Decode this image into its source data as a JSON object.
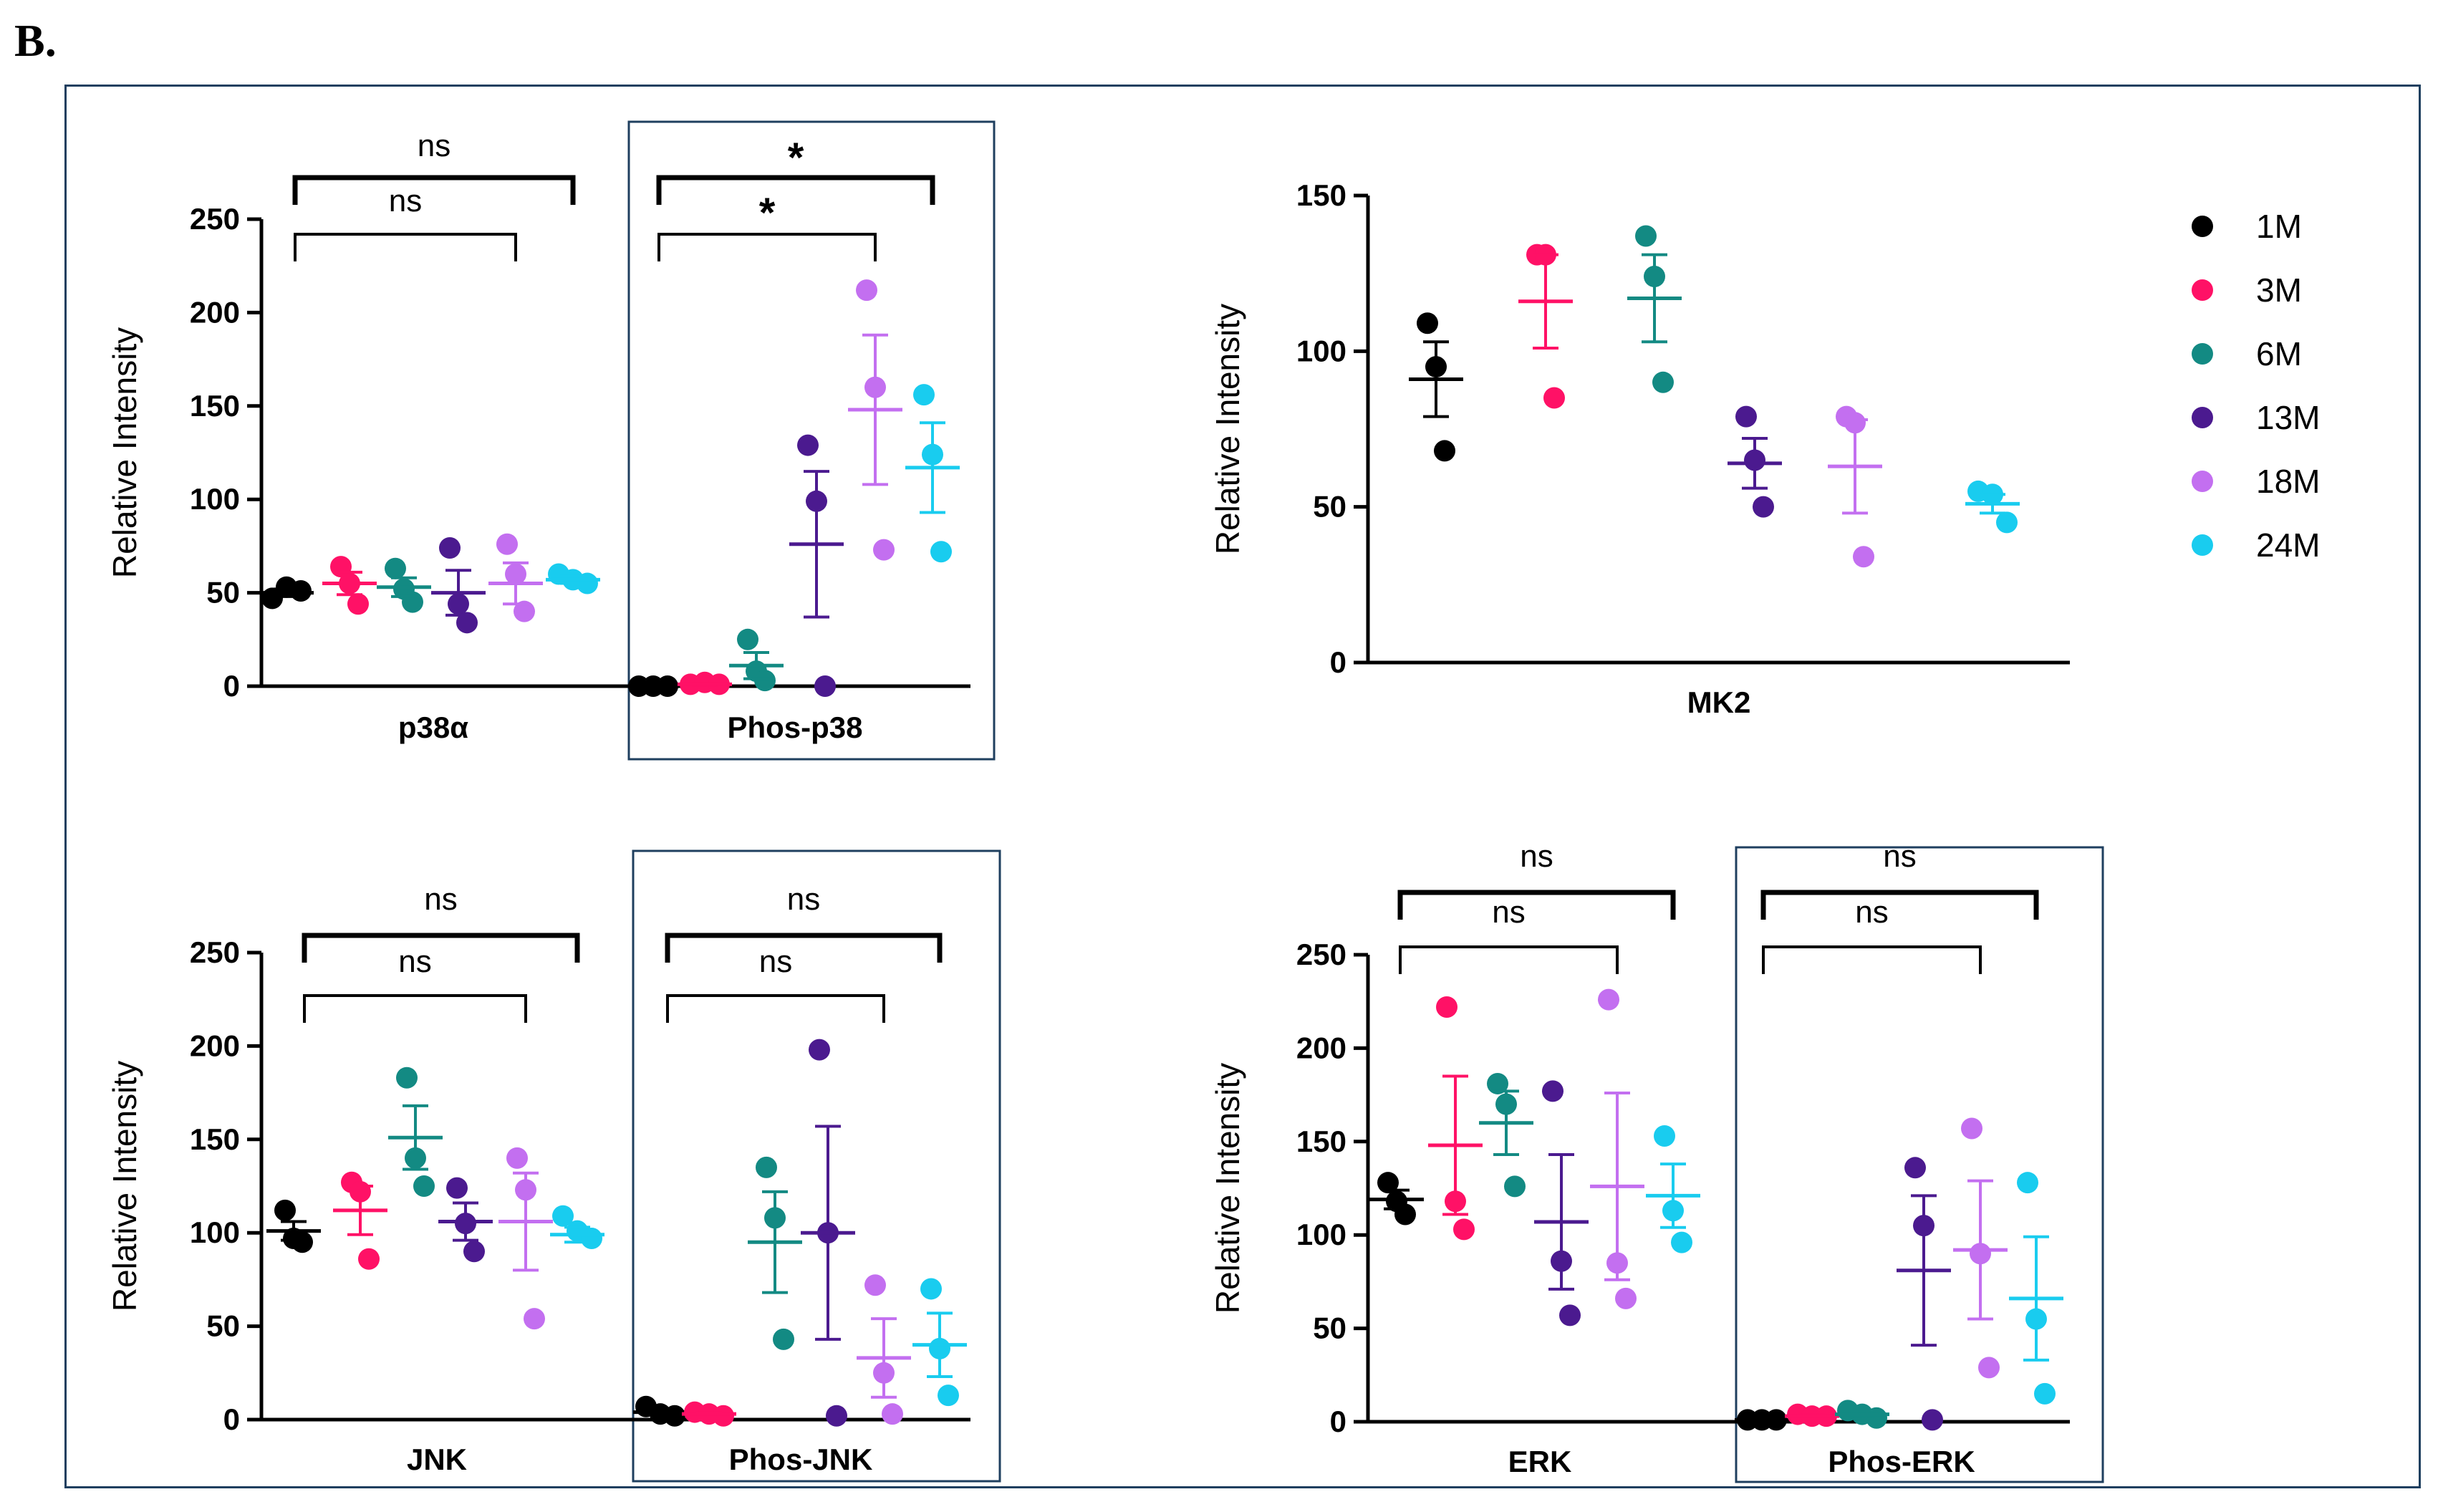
{
  "figure_label": "B.",
  "colors": {
    "1M": "#000000",
    "3M": "#ff1166",
    "6M": "#138a83",
    "13M": "#4b1a8f",
    "18M": "#c36ff0",
    "24M": "#19ccef"
  },
  "legend": [
    "1M",
    "3M",
    "6M",
    "13M",
    "18M",
    "24M"
  ],
  "chart_data": [
    {
      "type": "scatter",
      "title": "p38",
      "ylabel": "Relative Intensity",
      "ylim": [
        0,
        250
      ],
      "yticks": [
        "0",
        "50",
        "100",
        "150",
        "200",
        "250"
      ],
      "categories": [
        "p38α",
        "Phos-p38"
      ],
      "boxed": [
        "Phos-p38"
      ],
      "series": [
        {
          "name": "1M",
          "groups": [
            {
              "points": [
                47,
                53,
                51
              ],
              "mean": 50,
              "sem": 2
            },
            {
              "points": [
                0,
                0,
                0
              ],
              "mean": 0,
              "sem": 0
            }
          ]
        },
        {
          "name": "3M",
          "groups": [
            {
              "points": [
                64,
                55,
                44
              ],
              "mean": 55,
              "sem": 6
            },
            {
              "points": [
                1,
                2,
                1
              ],
              "mean": 1,
              "sem": 0.5
            }
          ]
        },
        {
          "name": "6M",
          "groups": [
            {
              "points": [
                63,
                52,
                45
              ],
              "mean": 53,
              "sem": 5
            },
            {
              "points": [
                25,
                8,
                3
              ],
              "mean": 11,
              "sem": 7
            }
          ]
        },
        {
          "name": "13M",
          "groups": [
            {
              "points": [
                74,
                44,
                34
              ],
              "mean": 50,
              "sem": 12
            },
            {
              "points": [
                129,
                99,
                0
              ],
              "mean": 76,
              "sem": 39
            }
          ]
        },
        {
          "name": "18M",
          "groups": [
            {
              "points": [
                76,
                60,
                40
              ],
              "mean": 55,
              "sem": 11
            },
            {
              "points": [
                212,
                160,
                73
              ],
              "mean": 148,
              "sem": 40
            }
          ]
        },
        {
          "name": "24M",
          "groups": [
            {
              "points": [
                60,
                57,
                55
              ],
              "mean": 57,
              "sem": 2
            },
            {
              "points": [
                156,
                124,
                72
              ],
              "mean": 117,
              "sem": 24
            }
          ]
        }
      ],
      "brackets": [
        {
          "label": "ns",
          "from_group": 0,
          "to_series": "18M",
          "level": 0
        },
        {
          "label": "ns",
          "from_group": 0,
          "to_series": "24M",
          "level": 1
        },
        {
          "label": "*",
          "from_group": 1,
          "to_series": "18M",
          "level": 0
        },
        {
          "label": "*",
          "from_group": 1,
          "to_series": "24M",
          "level": 1
        }
      ]
    },
    {
      "type": "scatter",
      "title": "MK2",
      "ylabel": "Relative Intensity",
      "ylim": [
        0,
        150
      ],
      "yticks": [
        "0",
        "50",
        "100",
        "150"
      ],
      "categories": [
        "MK2"
      ],
      "boxed": [],
      "series": [
        {
          "name": "1M",
          "groups": [
            {
              "points": [
                109,
                95,
                68
              ],
              "mean": 91,
              "sem": 12
            }
          ]
        },
        {
          "name": "3M",
          "groups": [
            {
              "points": [
                131,
                131,
                85
              ],
              "mean": 116,
              "sem": 15
            }
          ]
        },
        {
          "name": "6M",
          "groups": [
            {
              "points": [
                137,
                124,
                90
              ],
              "mean": 117,
              "sem": 14
            }
          ]
        },
        {
          "name": "13M",
          "groups": [
            {
              "points": [
                79,
                65,
                50
              ],
              "mean": 64,
              "sem": 8
            }
          ]
        },
        {
          "name": "18M",
          "groups": [
            {
              "points": [
                79,
                77,
                34
              ],
              "mean": 63,
              "sem": 15
            }
          ]
        },
        {
          "name": "24M",
          "groups": [
            {
              "points": [
                55,
                54,
                45
              ],
              "mean": 51,
              "sem": 3
            }
          ]
        }
      ],
      "brackets": []
    },
    {
      "type": "scatter",
      "title": "JNK",
      "ylabel": "Relative Intensity",
      "ylim": [
        0,
        250
      ],
      "yticks": [
        "0",
        "50",
        "100",
        "150",
        "200",
        "250"
      ],
      "categories": [
        "JNK",
        "Phos-JNK"
      ],
      "boxed": [
        "Phos-JNK"
      ],
      "series": [
        {
          "name": "1M",
          "groups": [
            {
              "points": [
                112,
                97,
                95
              ],
              "mean": 101,
              "sem": 5
            },
            {
              "points": [
                7,
                3,
                2
              ],
              "mean": 4,
              "sem": 1.5
            }
          ]
        },
        {
          "name": "3M",
          "groups": [
            {
              "points": [
                127,
                122,
                86
              ],
              "mean": 112,
              "sem": 13
            },
            {
              "points": [
                4,
                3,
                2
              ],
              "mean": 3,
              "sem": 0.5
            }
          ]
        },
        {
          "name": "6M",
          "groups": [
            {
              "points": [
                183,
                140,
                125
              ],
              "mean": 151,
              "sem": 17
            },
            {
              "points": [
                135,
                108,
                43
              ],
              "mean": 95,
              "sem": 27
            }
          ]
        },
        {
          "name": "13M",
          "groups": [
            {
              "points": [
                124,
                105,
                90
              ],
              "mean": 106,
              "sem": 10
            },
            {
              "points": [
                198,
                100,
                2
              ],
              "mean": 100,
              "sem": 57
            }
          ]
        },
        {
          "name": "18M",
          "groups": [
            {
              "points": [
                140,
                123,
                54
              ],
              "mean": 106,
              "sem": 26
            },
            {
              "points": [
                72,
                25,
                3
              ],
              "mean": 33,
              "sem": 21
            }
          ]
        },
        {
          "name": "24M",
          "groups": [
            {
              "points": [
                109,
                101,
                97
              ],
              "mean": 99,
              "sem": 4
            },
            {
              "points": [
                70,
                38,
                13
              ],
              "mean": 40,
              "sem": 17
            }
          ]
        }
      ],
      "brackets": [
        {
          "label": "ns",
          "from_group": 0,
          "to_series": "18M",
          "level": 0
        },
        {
          "label": "ns",
          "from_group": 0,
          "to_series": "24M",
          "level": 1
        },
        {
          "label": "ns",
          "from_group": 1,
          "to_series": "18M",
          "level": 0
        },
        {
          "label": "ns",
          "from_group": 1,
          "to_series": "24M",
          "level": 1
        }
      ]
    },
    {
      "type": "scatter",
      "title": "ERK",
      "ylabel": "Relative Intensity",
      "ylim": [
        0,
        250
      ],
      "yticks": [
        "0",
        "50",
        "100",
        "150",
        "200",
        "250"
      ],
      "categories": [
        "ERK",
        "Phos-ERK"
      ],
      "boxed": [
        "Phos-ERK"
      ],
      "series": [
        {
          "name": "1M",
          "groups": [
            {
              "points": [
                128,
                118,
                111
              ],
              "mean": 119,
              "sem": 5
            },
            {
              "points": [
                1,
                1,
                1
              ],
              "mean": 1,
              "sem": 0
            }
          ]
        },
        {
          "name": "3M",
          "groups": [
            {
              "points": [
                222,
                118,
                103
              ],
              "mean": 148,
              "sem": 37
            },
            {
              "points": [
                4,
                3,
                3
              ],
              "mean": 3,
              "sem": 0.5
            }
          ]
        },
        {
          "name": "6M",
          "groups": [
            {
              "points": [
                181,
                170,
                126
              ],
              "mean": 160,
              "sem": 17
            },
            {
              "points": [
                6,
                4,
                2
              ],
              "mean": 4,
              "sem": 1
            }
          ]
        },
        {
          "name": "13M",
          "groups": [
            {
              "points": [
                177,
                86,
                57
              ],
              "mean": 107,
              "sem": 36
            },
            {
              "points": [
                136,
                105,
                1
              ],
              "mean": 81,
              "sem": 40
            }
          ]
        },
        {
          "name": "18M",
          "groups": [
            {
              "points": [
                226,
                85,
                66
              ],
              "mean": 126,
              "sem": 50
            },
            {
              "points": [
                157,
                90,
                29
              ],
              "mean": 92,
              "sem": 37
            }
          ]
        },
        {
          "name": "24M",
          "groups": [
            {
              "points": [
                153,
                113,
                96
              ],
              "mean": 121,
              "sem": 17
            },
            {
              "points": [
                128,
                55,
                15
              ],
              "mean": 66,
              "sem": 33
            }
          ]
        }
      ],
      "brackets": [
        {
          "label": "ns",
          "from_group": 0,
          "to_series": "18M",
          "level": 0
        },
        {
          "label": "ns",
          "from_group": 0,
          "to_series": "24M",
          "level": 1
        },
        {
          "label": "ns",
          "from_group": 1,
          "to_series": "18M",
          "level": 0
        },
        {
          "label": "ns",
          "from_group": 1,
          "to_series": "24M",
          "level": 1
        }
      ]
    }
  ]
}
